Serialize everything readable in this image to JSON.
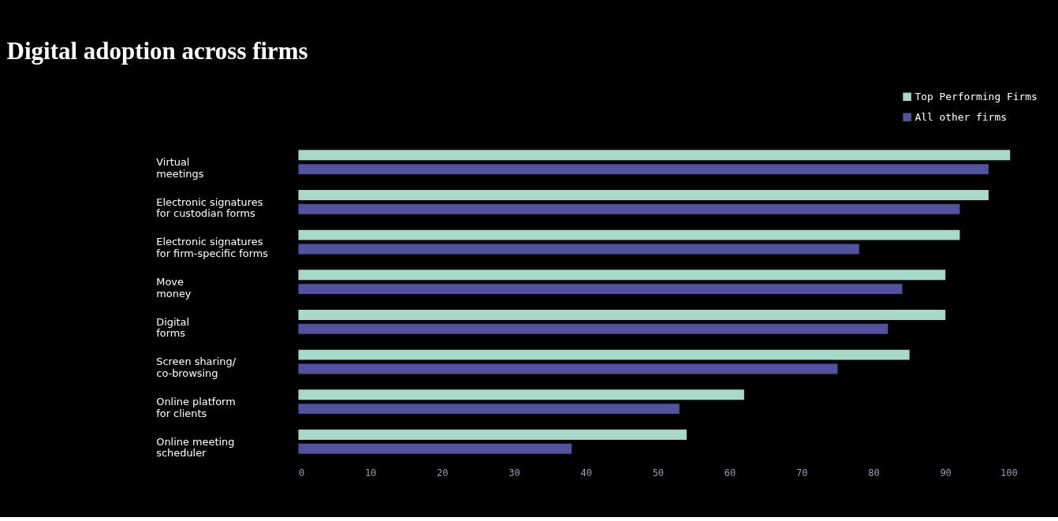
{
  "chart_data": {
    "type": "bar",
    "orientation": "horizontal",
    "title": "Digital adoption across firms",
    "categories": [
      "Virtual\nmeetings",
      "Electronic signatures\nfor custodian forms",
      "Electronic signatures\nfor firm-specific forms",
      "Move\nmoney",
      "Digital\nforms",
      "Screen sharing/\nco-browsing",
      "Online platform\nfor clients",
      "Online meeting\nscheduler"
    ],
    "series": [
      {
        "name": "Top Performing Firms",
        "color": "#a8d8c8",
        "values": [
          99,
          96,
          92,
          90,
          90,
          85,
          62,
          54
        ]
      },
      {
        "name": "All other firms",
        "color": "#5252a0",
        "values": [
          96,
          92,
          78,
          84,
          82,
          75,
          53,
          38
        ]
      }
    ],
    "xlim": [
      0,
      100
    ],
    "xticks": [
      0,
      10,
      20,
      30,
      40,
      50,
      60,
      70,
      80,
      90,
      100
    ],
    "grid": false,
    "legend": "top right"
  }
}
